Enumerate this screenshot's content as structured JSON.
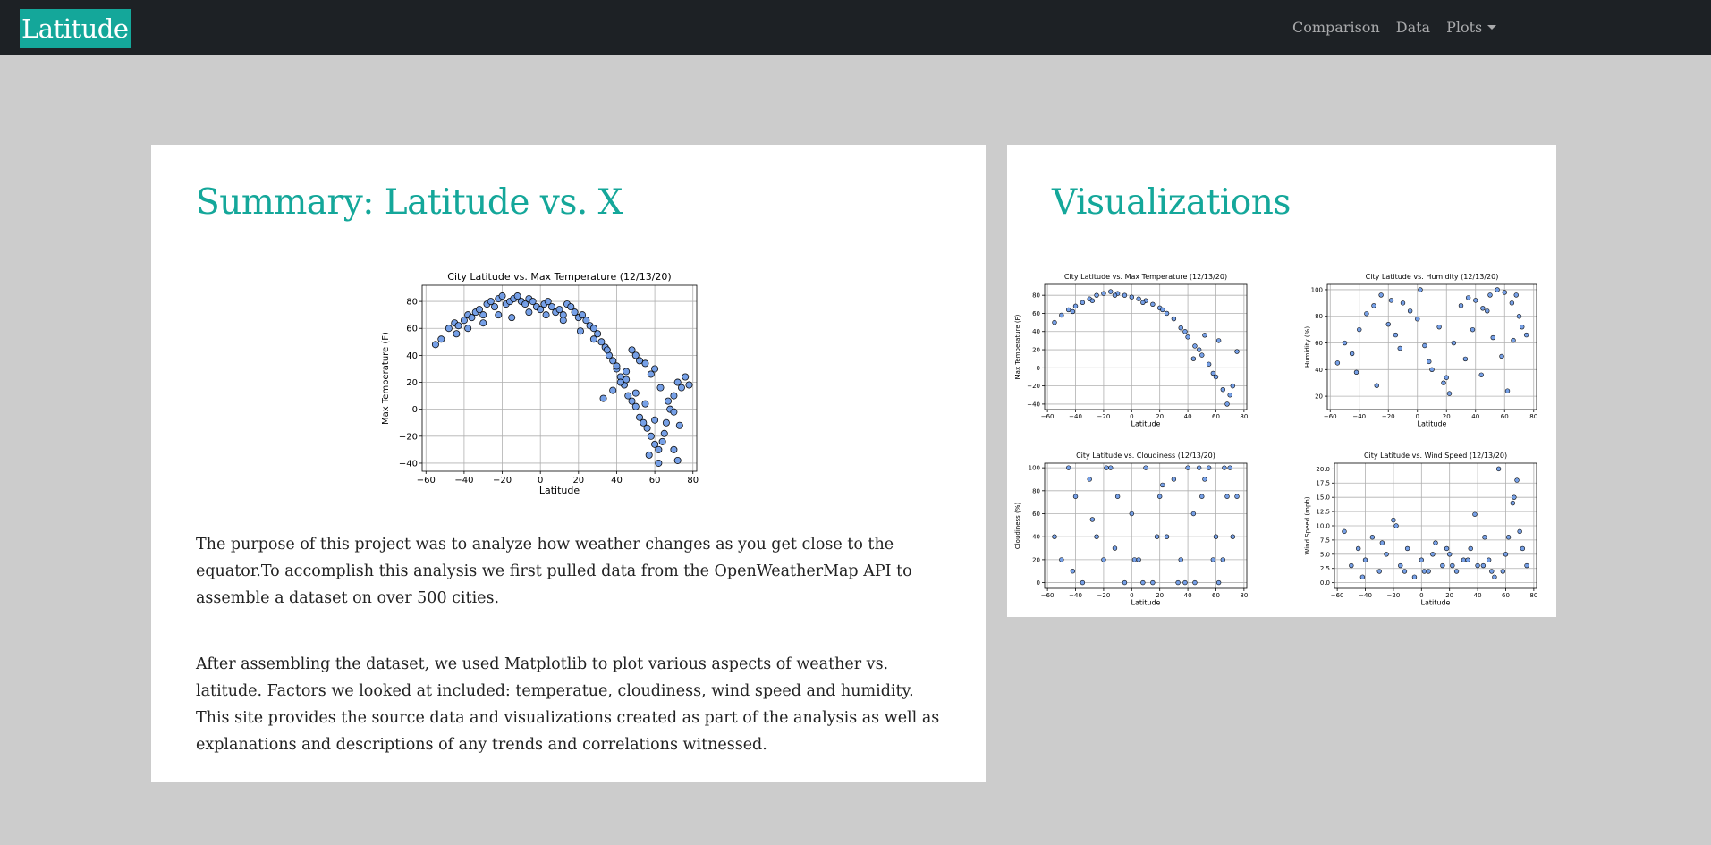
{
  "nav": {
    "brand": "Latitude",
    "links": [
      "Comparison",
      "Data",
      "Plots"
    ]
  },
  "summary": {
    "title": "Summary: Latitude vs. X",
    "paragraphs": [
      "The purpose of this project was to analyze how weather changes as you get close to the equator.To accomplish this analysis we first pulled data from the OpenWeatherMap API to assemble a dataset on over 500 cities.",
      "After assembling the dataset, we used Matplotlib to plot various aspects of weather vs. latitude. Factors we looked at included: temperatue, cloudiness, wind speed and humidity. This site provides the source data and visualizations created as part of the analysis as well as explanations and descriptions of any trends and correlations witnessed."
    ]
  },
  "visualizations": {
    "title": "Visualizations"
  },
  "colors": {
    "brand": "#14a79a",
    "navbar": "#1d2125",
    "point": "#6f9be6"
  },
  "chart_data": [
    {
      "type": "scatter",
      "title": "City Latitude vs. Max Temperature (12/13/20)",
      "xlabel": "Latitude",
      "ylabel": "Max Temperature (F)",
      "xlim": [
        -62,
        82
      ],
      "ylim": [
        -46,
        92
      ],
      "xticks": [
        -60,
        -40,
        -20,
        0,
        20,
        40,
        60,
        80
      ],
      "yticks": [
        -40,
        -20,
        0,
        20,
        40,
        60,
        80
      ],
      "grid": true,
      "x": [
        -55,
        -52,
        -48,
        -45,
        -43,
        -40,
        -38,
        -36,
        -34,
        -32,
        -30,
        -28,
        -26,
        -24,
        -22,
        -20,
        -18,
        -16,
        -14,
        -12,
        -10,
        -8,
        -6,
        -4,
        -2,
        0,
        2,
        4,
        6,
        8,
        10,
        12,
        14,
        16,
        18,
        20,
        22,
        24,
        26,
        28,
        30,
        32,
        34,
        36,
        38,
        40,
        42,
        44,
        46,
        48,
        50,
        52,
        54,
        56,
        58,
        60,
        62,
        64,
        66,
        68,
        70,
        72,
        74,
        76,
        78,
        -44,
        -38,
        -30,
        -22,
        -15,
        -6,
        3,
        12,
        21,
        28,
        35,
        40,
        45,
        50,
        55,
        60,
        65,
        70,
        72,
        60,
        55,
        50,
        45,
        42,
        38,
        33,
        48,
        52,
        58,
        63,
        67,
        70,
        73,
        62,
        57
      ],
      "y": [
        48,
        52,
        60,
        64,
        62,
        66,
        70,
        68,
        72,
        74,
        70,
        78,
        80,
        76,
        82,
        84,
        78,
        80,
        82,
        84,
        80,
        78,
        82,
        80,
        76,
        74,
        78,
        80,
        76,
        72,
        74,
        70,
        78,
        76,
        72,
        68,
        70,
        66,
        62,
        60,
        56,
        50,
        46,
        40,
        36,
        30,
        24,
        18,
        10,
        6,
        2,
        -6,
        -10,
        -14,
        -20,
        -26,
        -30,
        -24,
        -10,
        0,
        10,
        20,
        16,
        24,
        18,
        56,
        60,
        64,
        70,
        68,
        72,
        70,
        66,
        58,
        52,
        44,
        32,
        22,
        12,
        4,
        -8,
        -18,
        -30,
        -38,
        30,
        34,
        40,
        28,
        20,
        14,
        8,
        44,
        36,
        26,
        16,
        6,
        -2,
        -12,
        -40,
        -34
      ]
    },
    {
      "type": "scatter",
      "title": "City Latitude vs. Max Temperature (12/13/20)",
      "xlabel": "Latitude",
      "ylabel": "Max Temperature (F)",
      "xlim": [
        -62,
        82
      ],
      "ylim": [
        -46,
        92
      ],
      "xticks": [
        -60,
        -40,
        -20,
        0,
        20,
        40,
        60,
        80
      ],
      "yticks": [
        -40,
        -20,
        0,
        20,
        40,
        60,
        80
      ],
      "grid": true,
      "x": [
        -55,
        -50,
        -45,
        -40,
        -35,
        -30,
        -25,
        -20,
        -15,
        -10,
        -5,
        0,
        5,
        10,
        15,
        20,
        25,
        30,
        35,
        40,
        45,
        50,
        55,
        60,
        65,
        70,
        75,
        -42,
        -28,
        -12,
        8,
        22,
        38,
        48,
        58,
        68,
        72,
        62,
        52,
        44
      ],
      "y": [
        50,
        58,
        64,
        68,
        72,
        76,
        80,
        82,
        84,
        82,
        80,
        78,
        76,
        74,
        70,
        66,
        60,
        54,
        44,
        34,
        24,
        14,
        4,
        -10,
        -24,
        -30,
        18,
        62,
        74,
        80,
        72,
        64,
        40,
        20,
        -6,
        -40,
        -20,
        30,
        36,
        10
      ]
    },
    {
      "type": "scatter",
      "title": "City Latitude vs. Humidity (12/13/20)",
      "xlabel": "Latitude",
      "ylabel": "Humidity (%)",
      "xlim": [
        -62,
        82
      ],
      "ylim": [
        10,
        104
      ],
      "xticks": [
        -60,
        -40,
        -20,
        0,
        20,
        40,
        60,
        80
      ],
      "yticks": [
        20,
        40,
        60,
        80,
        100
      ],
      "grid": true,
      "x": [
        -55,
        -50,
        -45,
        -40,
        -35,
        -30,
        -25,
        -20,
        -15,
        -10,
        -5,
        0,
        5,
        10,
        15,
        20,
        25,
        30,
        35,
        40,
        45,
        50,
        55,
        60,
        65,
        70,
        75,
        -42,
        -28,
        -12,
        8,
        22,
        38,
        48,
        58,
        68,
        72,
        62,
        52,
        44,
        -18,
        2,
        18,
        33,
        66
      ],
      "y": [
        45,
        60,
        52,
        70,
        82,
        88,
        96,
        74,
        66,
        90,
        84,
        78,
        58,
        40,
        72,
        34,
        60,
        88,
        94,
        92,
        86,
        96,
        100,
        98,
        90,
        80,
        66,
        38,
        28,
        56,
        46,
        22,
        70,
        84,
        50,
        96,
        72,
        24,
        64,
        36,
        92,
        100,
        30,
        48,
        62
      ]
    },
    {
      "type": "scatter",
      "title": "City Latitude vs. Cloudiness (12/13/20)",
      "xlabel": "Latitude",
      "ylabel": "Cloudiness (%)",
      "xlim": [
        -62,
        82
      ],
      "ylim": [
        -5,
        104
      ],
      "xticks": [
        -60,
        -40,
        -20,
        0,
        20,
        40,
        60,
        80
      ],
      "yticks": [
        0,
        20,
        40,
        60,
        80,
        100
      ],
      "grid": true,
      "x": [
        -55,
        -50,
        -45,
        -40,
        -35,
        -30,
        -25,
        -20,
        -15,
        -10,
        -5,
        0,
        5,
        10,
        15,
        20,
        25,
        30,
        35,
        40,
        45,
        50,
        55,
        60,
        65,
        70,
        75,
        -42,
        -28,
        -12,
        8,
        22,
        38,
        48,
        58,
        68,
        72,
        62,
        52,
        44,
        -18,
        2,
        18,
        33,
        66
      ],
      "y": [
        40,
        20,
        100,
        75,
        0,
        90,
        40,
        20,
        100,
        75,
        0,
        60,
        20,
        100,
        0,
        75,
        40,
        90,
        20,
        100,
        0,
        75,
        100,
        40,
        20,
        100,
        75,
        10,
        55,
        30,
        0,
        85,
        0,
        100,
        20,
        75,
        40,
        0,
        90,
        60,
        100,
        20,
        40,
        0,
        100
      ]
    },
    {
      "type": "scatter",
      "title": "City Latitude vs. Wind Speed (12/13/20)",
      "xlabel": "Latitude",
      "ylabel": "Wind Speed (mph)",
      "xlim": [
        -62,
        82
      ],
      "ylim": [
        -1,
        21
      ],
      "xticks": [
        -60,
        -40,
        -20,
        0,
        20,
        40,
        60,
        80
      ],
      "yticks": [
        0.0,
        2.5,
        5.0,
        7.5,
        10.0,
        12.5,
        15.0,
        17.5,
        20.0
      ],
      "grid": true,
      "x": [
        -55,
        -50,
        -45,
        -40,
        -35,
        -30,
        -25,
        -20,
        -15,
        -10,
        -5,
        0,
        5,
        10,
        15,
        20,
        25,
        30,
        35,
        40,
        45,
        50,
        55,
        60,
        65,
        70,
        75,
        -42,
        -28,
        -12,
        8,
        22,
        38,
        48,
        58,
        68,
        72,
        62,
        52,
        44,
        -18,
        2,
        18,
        33,
        66
      ],
      "y": [
        9,
        3,
        6,
        4,
        8,
        2,
        5,
        11,
        3,
        6,
        1,
        4,
        2,
        7,
        3,
        5,
        2,
        4,
        6,
        3,
        8,
        2,
        20,
        5,
        14,
        9,
        3,
        1,
        7,
        2,
        5,
        3,
        12,
        4,
        2,
        18,
        6,
        8,
        1,
        3,
        10,
        2,
        6,
        4,
        15
      ]
    }
  ]
}
